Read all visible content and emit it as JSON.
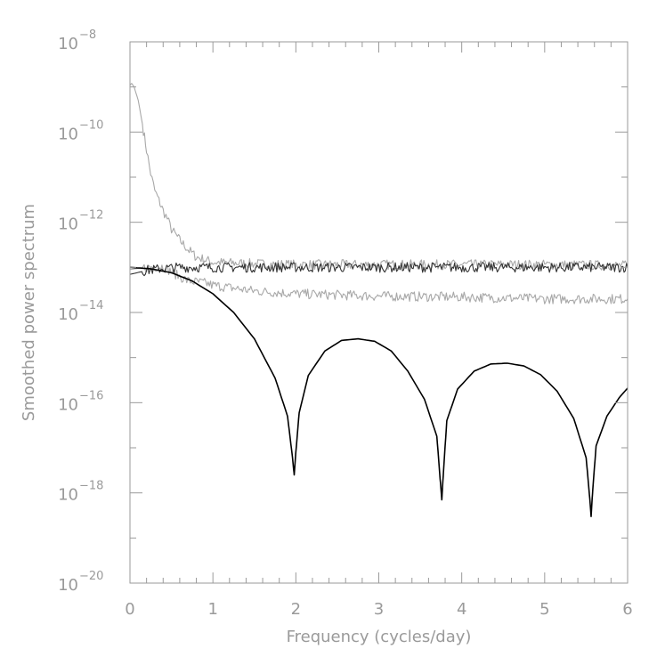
{
  "chart_data": {
    "type": "line",
    "title": "",
    "xlabel": "Frequency (cycles/day)",
    "ylabel": "Smoothed power spectrum",
    "xlim": [
      0,
      6
    ],
    "ylim": [
      1e-20,
      1e-08
    ],
    "yscale": "log",
    "grid": false,
    "legend": "none",
    "x_ticks": [
      {
        "value": 0,
        "label": "0"
      },
      {
        "value": 1,
        "label": "1"
      },
      {
        "value": 2,
        "label": "2"
      },
      {
        "value": 3,
        "label": "3"
      },
      {
        "value": 4,
        "label": "4"
      },
      {
        "value": 5,
        "label": "5"
      },
      {
        "value": 6,
        "label": "6"
      }
    ],
    "y_ticks": [
      {
        "exponent": -8,
        "base": "10",
        "exp": "−8"
      },
      {
        "exponent": -10,
        "base": "10",
        "exp": "−10"
      },
      {
        "exponent": -12,
        "base": "10",
        "exp": "−12"
      },
      {
        "exponent": -14,
        "base": "10",
        "exp": "−14"
      },
      {
        "exponent": -16,
        "base": "10",
        "exp": "−16"
      },
      {
        "exponent": -18,
        "base": "10",
        "exp": "−18"
      },
      {
        "exponent": -20,
        "base": "10",
        "exp": "−20"
      }
    ],
    "series": [
      {
        "color": "#a8a8a8",
        "x": [
          0,
          0.02,
          0.05,
          0.1,
          0.15,
          0.2,
          0.25,
          0.3,
          0.35,
          0.4,
          0.45,
          0.5,
          0.6,
          0.7,
          0.8,
          1.0,
          1.5,
          2.0,
          3.0,
          4.0,
          5.0,
          6.0
        ],
        "y": [
          1.1e-09,
          1.2e-09,
          1e-09,
          5e-10,
          1.5e-10,
          4e-11,
          1.2e-11,
          5e-12,
          3e-12,
          1.8e-12,
          1.2e-12,
          7e-13,
          4e-13,
          2.5e-13,
          1.7e-13,
          1.3e-13,
          1.2e-13,
          1.15e-13,
          1.15e-13,
          1.15e-13,
          1.15e-13,
          1.1e-13
        ]
      },
      {
        "color": "#a8a8a8",
        "x": [
          0,
          0.2,
          0.4,
          0.55,
          0.7,
          0.9,
          1.0,
          1.5,
          2.0,
          3.0,
          4.0,
          5.0,
          6.0
        ],
        "y": [
          9e-14,
          1e-13,
          1.05e-13,
          7e-14,
          5e-14,
          4.5e-14,
          4e-14,
          3e-14,
          2.6e-14,
          2.3e-14,
          2.2e-14,
          2e-14,
          2e-14
        ]
      },
      {
        "color": "#333333",
        "x": [
          0,
          0.2,
          0.4,
          0.6,
          0.8,
          1.0,
          2.0,
          3.0,
          4.0,
          5.0,
          6.0
        ],
        "y": [
          7e-14,
          8.5e-14,
          9.5e-14,
          1e-13,
          1e-13,
          1e-13,
          1e-13,
          1e-13,
          1e-13,
          1e-13,
          1e-13
        ]
      },
      {
        "color": "#000000",
        "x": [
          0,
          0.25,
          0.5,
          0.75,
          1.0,
          1.25,
          1.5,
          1.75,
          1.9,
          1.96,
          1.98,
          2.0,
          2.04,
          2.15,
          2.35,
          2.55,
          2.75,
          2.95,
          3.15,
          3.35,
          3.55,
          3.7,
          3.74,
          3.76,
          3.78,
          3.82,
          3.95,
          4.15,
          4.35,
          4.55,
          4.75,
          4.95,
          5.15,
          5.35,
          5.5,
          5.54,
          5.56,
          5.58,
          5.62,
          5.75,
          5.9,
          6.0
        ],
        "y": [
          1e-13,
          9.3e-14,
          7.6e-14,
          5e-14,
          2.6e-14,
          1e-14,
          2.6e-15,
          3.5e-16,
          5e-17,
          6e-18,
          2.5e-18,
          8e-18,
          6e-17,
          4e-16,
          1.4e-15,
          2.4e-15,
          2.6e-15,
          2.3e-15,
          1.4e-15,
          5e-16,
          1.2e-16,
          1.8e-17,
          2e-18,
          7e-19,
          3e-18,
          4e-17,
          2e-16,
          5e-16,
          7.2e-16,
          7.5e-16,
          6.5e-16,
          4.2e-16,
          1.8e-16,
          4.5e-17,
          6e-18,
          9e-19,
          3e-19,
          1.2e-18,
          1.1e-17,
          5e-17,
          1.3e-16,
          2.1e-16
        ]
      }
    ]
  }
}
